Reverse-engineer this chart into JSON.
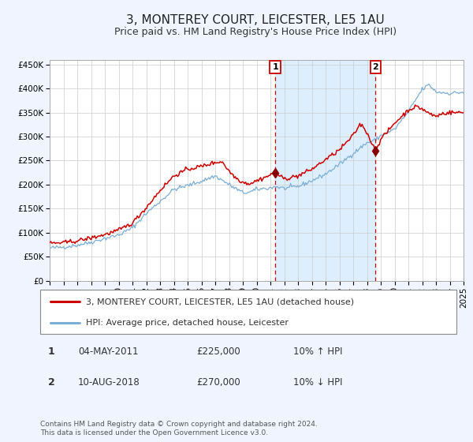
{
  "title": "3, MONTEREY COURT, LEICESTER, LE5 1AU",
  "subtitle": "Price paid vs. HM Land Registry's House Price Index (HPI)",
  "ylim": [
    0,
    460000
  ],
  "yticks": [
    0,
    50000,
    100000,
    150000,
    200000,
    250000,
    300000,
    350000,
    400000,
    450000
  ],
  "x_start_year": 1995,
  "x_end_year": 2025,
  "red_line_color": "#cc0000",
  "blue_line_color": "#7aaed6",
  "shade_color": "#ddeeff",
  "dashed_line_color": "#cc0000",
  "marker_color": "#880000",
  "sale1_year": 2011.35,
  "sale1_price": 225000,
  "sale2_year": 2018.62,
  "sale2_price": 270000,
  "legend_entries": [
    "3, MONTEREY COURT, LEICESTER, LE5 1AU (detached house)",
    "HPI: Average price, detached house, Leicester"
  ],
  "table_rows": [
    [
      "1",
      "04-MAY-2011",
      "£225,000",
      "10% ↑ HPI"
    ],
    [
      "2",
      "10-AUG-2018",
      "£270,000",
      "10% ↓ HPI"
    ]
  ],
  "footnote": "Contains HM Land Registry data © Crown copyright and database right 2024.\nThis data is licensed under the Open Government Licence v3.0.",
  "bg_color": "#f0f4ff",
  "plot_bg_color": "#ffffff",
  "grid_color": "#cccccc",
  "title_fontsize": 11,
  "subtitle_fontsize": 9,
  "tick_fontsize": 7.5
}
